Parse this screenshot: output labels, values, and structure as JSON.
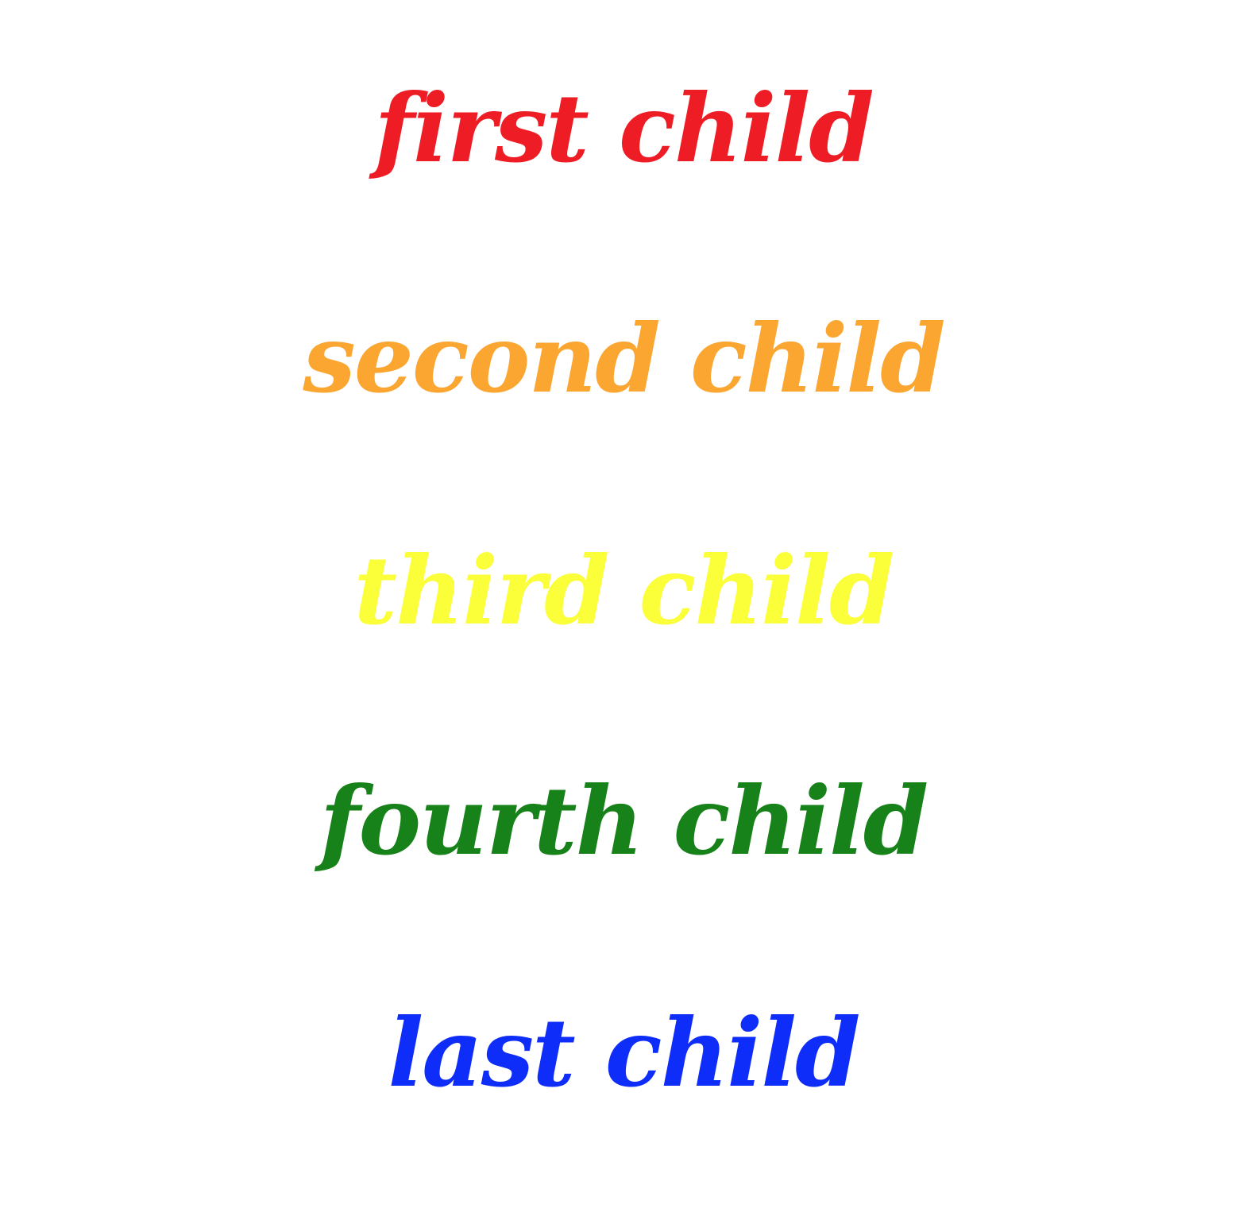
{
  "children": [
    {
      "text": "first child",
      "color": "#ee1c25"
    },
    {
      "text": "second child",
      "color": "#faa631"
    },
    {
      "text": "third child",
      "color": "#fbff3a"
    },
    {
      "text": "fourth child",
      "color": "#168219"
    },
    {
      "text": "last child",
      "color": "#0f2df8"
    }
  ]
}
